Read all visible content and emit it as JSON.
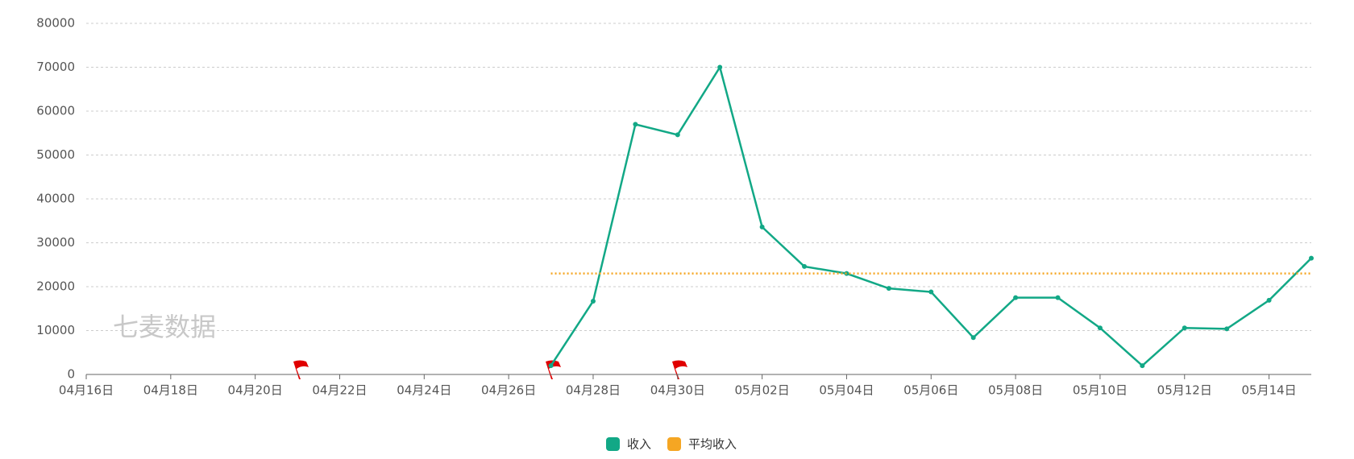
{
  "chart_data": {
    "type": "line",
    "watermark": "七麦数据",
    "categories": [
      "04月16日",
      null,
      "04月18日",
      null,
      "04月20日",
      null,
      "04月22日",
      null,
      "04月24日",
      null,
      "04月26日",
      null,
      "04月28日",
      null,
      "04月30日",
      null,
      "05月02日",
      null,
      "05月04日",
      null,
      "05月06日",
      null,
      "05月08日",
      null,
      "05月10日",
      null,
      "05月12日",
      null,
      "05月14日",
      null
    ],
    "series": [
      {
        "name": "收入",
        "color": "#12a886",
        "values": [
          null,
          null,
          null,
          null,
          null,
          null,
          null,
          null,
          null,
          null,
          null,
          2000,
          16700,
          57000,
          54600,
          70000,
          33600,
          24600,
          23000,
          19600,
          18800,
          8400,
          17500,
          17500,
          10600,
          2000,
          10600,
          10400,
          16900,
          26500
        ]
      },
      {
        "name": "平均收入",
        "color": "#f5a623",
        "dashed": true,
        "values": [
          null,
          null,
          null,
          null,
          null,
          null,
          null,
          null,
          null,
          null,
          null,
          23000,
          23000,
          23000,
          23000,
          23000,
          23000,
          23000,
          23000,
          23000,
          23000,
          23000,
          23000,
          23000,
          23000,
          23000,
          23000,
          23000,
          23000,
          23000
        ]
      }
    ],
    "ylim": [
      0,
      80000
    ],
    "yticks": [
      0,
      10000,
      20000,
      30000,
      40000,
      50000,
      60000,
      70000,
      80000
    ],
    "grid": true,
    "legend": "bottom"
  }
}
